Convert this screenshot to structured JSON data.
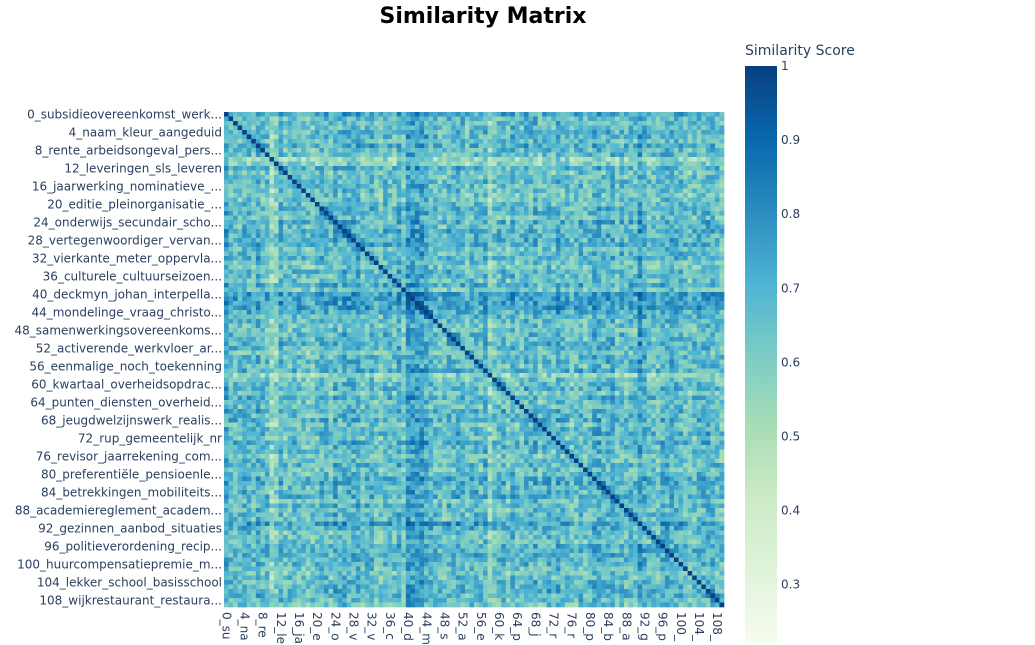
{
  "chart_data": {
    "type": "heatmap",
    "title": "Similarity Matrix",
    "n": 110,
    "y_tick_labels": [
      {
        "index": 0,
        "label": "0_subsidieovereenkomst_werk..."
      },
      {
        "index": 4,
        "label": "4_naam_kleur_aangeduid"
      },
      {
        "index": 8,
        "label": "8_rente_arbeidsongeval_pers..."
      },
      {
        "index": 12,
        "label": "12_leveringen_sls_leveren"
      },
      {
        "index": 16,
        "label": "16_jaarwerking_nominatieve_..."
      },
      {
        "index": 20,
        "label": "20_editie_pleinorganisatie_..."
      },
      {
        "index": 24,
        "label": "24_onderwijs_secundair_scho..."
      },
      {
        "index": 28,
        "label": "28_vertegenwoordiger_vervan..."
      },
      {
        "index": 32,
        "label": "32_vierkante_meter_oppervla..."
      },
      {
        "index": 36,
        "label": "36_culturele_cultuurseizoen..."
      },
      {
        "index": 40,
        "label": "40_deckmyn_johan_interpella..."
      },
      {
        "index": 44,
        "label": "44_mondelinge_vraag_christo..."
      },
      {
        "index": 48,
        "label": "48_samenwerkingsovereenkoms..."
      },
      {
        "index": 52,
        "label": "52_activerende_werkvloer_ar..."
      },
      {
        "index": 56,
        "label": "56_eenmalige_noch_toekenning"
      },
      {
        "index": 60,
        "label": "60_kwartaal_overheidsopdrac..."
      },
      {
        "index": 64,
        "label": "64_punten_diensten_overheid..."
      },
      {
        "index": 68,
        "label": "68_jeugdwelzijnswerk_realis..."
      },
      {
        "index": 72,
        "label": "72_rup_gemeentelijk_nr"
      },
      {
        "index": 76,
        "label": "76_revisor_jaarrekening_com..."
      },
      {
        "index": 80,
        "label": "80_preferentiële_pensioenle..."
      },
      {
        "index": 84,
        "label": "84_betrekkingen_mobiliteits..."
      },
      {
        "index": 88,
        "label": "88_academiereglement_academ..."
      },
      {
        "index": 92,
        "label": "92_gezinnen_aanbod_situaties"
      },
      {
        "index": 96,
        "label": "96_politieverordening_recip..."
      },
      {
        "index": 100,
        "label": "100_huurcompensatiepremie_m..."
      },
      {
        "index": 104,
        "label": "104_lekker_school_basisschool"
      },
      {
        "index": 108,
        "label": "108_wijkrestaurant_restaura..."
      }
    ],
    "x_tick_labels": [
      {
        "index": 0,
        "label": "0_su"
      },
      {
        "index": 4,
        "label": "4_na"
      },
      {
        "index": 8,
        "label": "8_re"
      },
      {
        "index": 12,
        "label": "12_le"
      },
      {
        "index": 16,
        "label": "16_ja"
      },
      {
        "index": 20,
        "label": "20_e"
      },
      {
        "index": 24,
        "label": "24_o"
      },
      {
        "index": 28,
        "label": "28_v"
      },
      {
        "index": 32,
        "label": "32_v"
      },
      {
        "index": 36,
        "label": "36_c"
      },
      {
        "index": 40,
        "label": "40_d"
      },
      {
        "index": 44,
        "label": "44_m"
      },
      {
        "index": 48,
        "label": "48_s"
      },
      {
        "index": 52,
        "label": "52_a"
      },
      {
        "index": 56,
        "label": "56_e"
      },
      {
        "index": 60,
        "label": "60_k"
      },
      {
        "index": 64,
        "label": "64_p"
      },
      {
        "index": 68,
        "label": "68_j"
      },
      {
        "index": 72,
        "label": "72_r"
      },
      {
        "index": 76,
        "label": "76_r"
      },
      {
        "index": 80,
        "label": "80_p"
      },
      {
        "index": 84,
        "label": "84_b"
      },
      {
        "index": 88,
        "label": "88_a"
      },
      {
        "index": 92,
        "label": "92_g"
      },
      {
        "index": 96,
        "label": "96_p"
      },
      {
        "index": 100,
        "label": "100_"
      },
      {
        "index": 104,
        "label": "104_"
      },
      {
        "index": 108,
        "label": "108_"
      }
    ],
    "colorbar": {
      "title": "Similarity Score",
      "range": [
        0.22,
        1
      ],
      "ticks": [
        {
          "value": 1,
          "label": "1"
        },
        {
          "value": 0.9,
          "label": "0.9"
        },
        {
          "value": 0.8,
          "label": "0.8"
        },
        {
          "value": 0.7,
          "label": "0.7"
        },
        {
          "value": 0.6,
          "label": "0.6"
        },
        {
          "value": 0.5,
          "label": "0.5"
        },
        {
          "value": 0.4,
          "label": "0.4"
        },
        {
          "value": 0.3,
          "label": "0.3"
        }
      ]
    },
    "colorscale": [
      "#f7fcf0",
      "#e0f3db",
      "#ccebc5",
      "#a8ddb5",
      "#7bccc4",
      "#4eb3d3",
      "#2b8cbe",
      "#0868ac",
      "#084081"
    ],
    "diagonal_value": 1,
    "row_bias": {
      "0": 0.02,
      "10": -0.1,
      "11": -0.08,
      "40": 0.08,
      "41": 0.1,
      "42": 0.1,
      "43": 0.08,
      "44": 0.06,
      "53": -0.06,
      "58": -0.06,
      "65": -0.05,
      "91": 0.05,
      "96": 0.04
    },
    "off_diagonal_mean": 0.66,
    "off_diagonal_spread": 0.12
  }
}
